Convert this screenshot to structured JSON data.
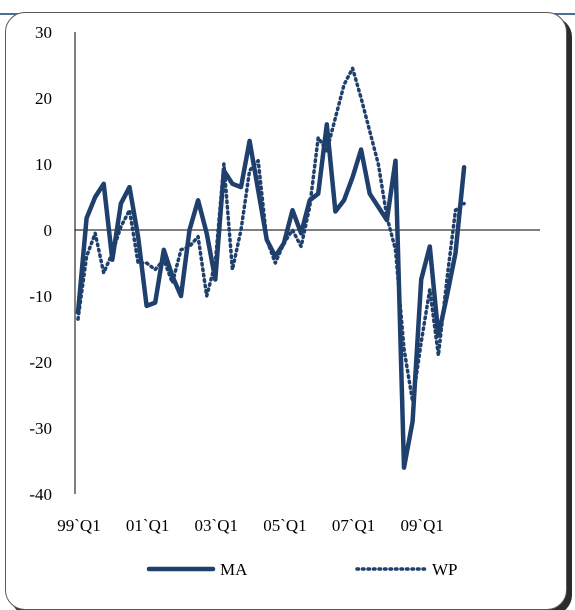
{
  "colors": {
    "series": "#1f3f6d",
    "frame_top": "#4a6d9c",
    "axis": "#000000"
  },
  "chart_data": {
    "type": "line",
    "y_ticks": [
      "30",
      "20",
      "10",
      "0",
      "-10",
      "-20",
      "-30",
      "-40"
    ],
    "ylim": [
      -40,
      30
    ],
    "x_tick_labels": [
      "99`Q1",
      "01`Q1",
      "03`Q1",
      "05`Q1",
      "07`Q1",
      "09`Q1"
    ],
    "x_tick_index": [
      0,
      8,
      16,
      24,
      32,
      40
    ],
    "legend_position": "bottom",
    "series": [
      {
        "name": "MA",
        "style": "solid",
        "values": [
          -12.5,
          1.8,
          5,
          7,
          -4.5,
          4,
          6.5,
          -1,
          -11.5,
          -11,
          -3,
          -7,
          -10,
          0,
          4.5,
          -0.5,
          -7.5,
          9,
          7,
          6.5,
          13.5,
          6,
          -1.5,
          -4,
          -2,
          3,
          -0.5,
          4.5,
          5.5,
          16,
          2.8,
          4.5,
          8,
          12.2,
          5.5,
          3.5,
          1.5,
          10.5,
          -36,
          -29,
          -7.5,
          -2.5,
          -16,
          -10,
          -3.5,
          9.5
        ]
      },
      {
        "name": "WP",
        "style": "dotted",
        "values": [
          -13.5,
          -4,
          -0.5,
          -6.5,
          -3.5,
          0.5,
          3,
          -5,
          -5,
          -6,
          -4.5,
          -8,
          -3,
          -2.5,
          -1,
          -10,
          -5,
          10,
          -6,
          0,
          9,
          10.5,
          -1.5,
          -5,
          -2,
          0,
          -2.5,
          3.5,
          14,
          12,
          17,
          22,
          24.5,
          20,
          15,
          10,
          2,
          -3,
          -18,
          -26,
          -17,
          -9,
          -19,
          -7.5,
          3,
          4
        ]
      }
    ]
  }
}
